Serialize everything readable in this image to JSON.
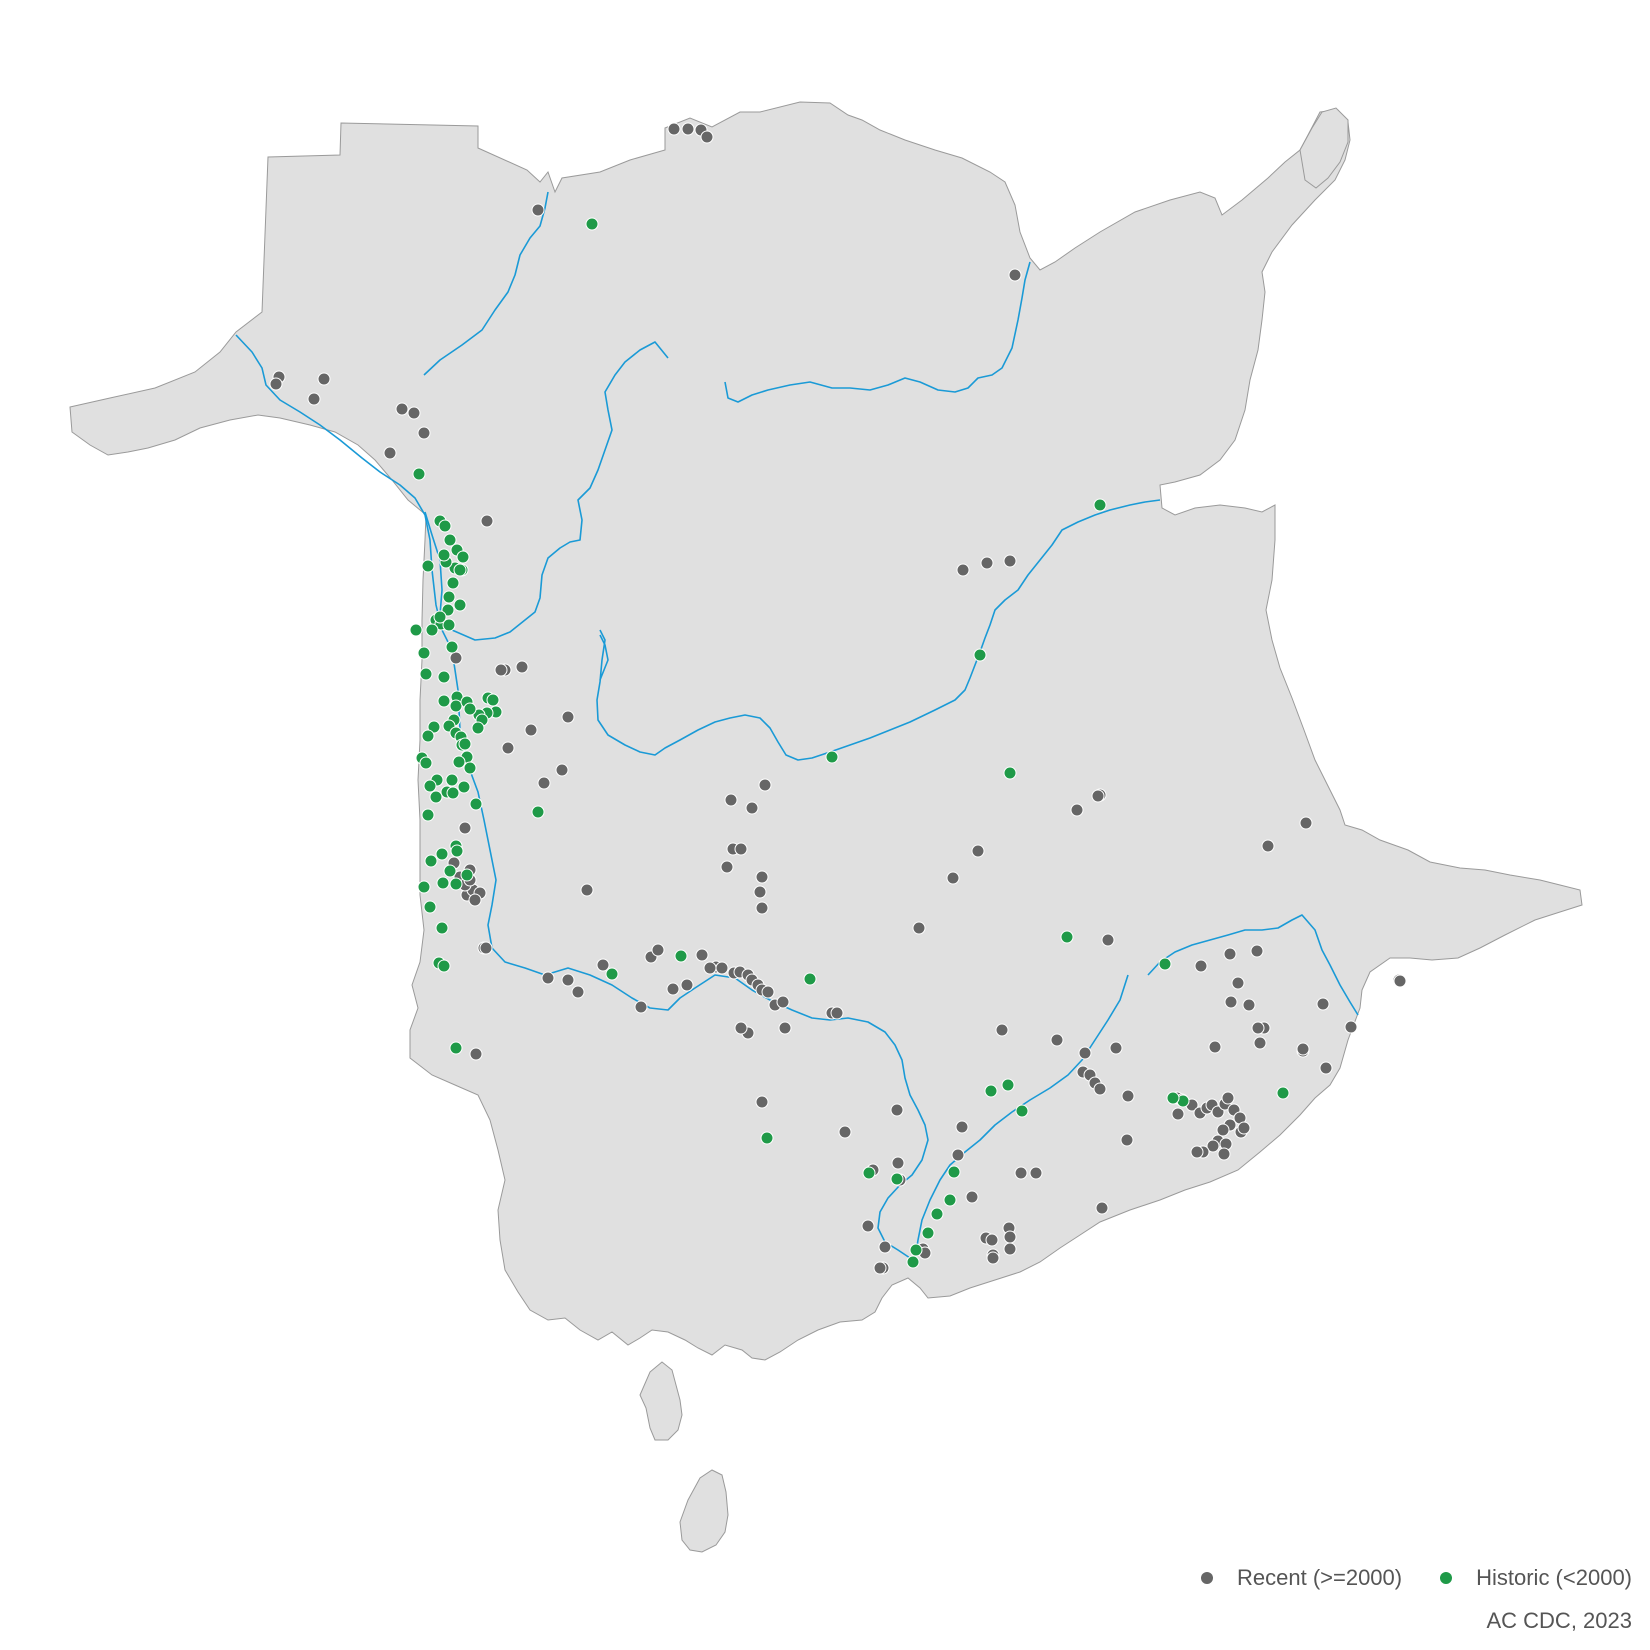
{
  "legend": {
    "recent": {
      "label": "Recent (>=2000)",
      "color": "#666666"
    },
    "historic": {
      "label": "Historic (<2000)",
      "color": "#1f9a48"
    }
  },
  "credit": "AC CDC, 2023",
  "colors": {
    "land": "#e0e0e0",
    "water": "#1a9ad6",
    "background": "#ffffff"
  },
  "observations": {
    "recent": [
      [
        674,
        129
      ],
      [
        688,
        129
      ],
      [
        701,
        130
      ],
      [
        707,
        137
      ],
      [
        538,
        210
      ],
      [
        1015,
        275
      ],
      [
        279,
        377
      ],
      [
        276,
        384
      ],
      [
        324,
        379
      ],
      [
        314,
        399
      ],
      [
        402,
        409
      ],
      [
        414,
        413
      ],
      [
        424,
        433
      ],
      [
        390,
        453
      ],
      [
        487,
        521
      ],
      [
        963,
        570
      ],
      [
        987,
        563
      ],
      [
        1010,
        561
      ],
      [
        505,
        670
      ],
      [
        501,
        670
      ],
      [
        522,
        667
      ],
      [
        456,
        658
      ],
      [
        568,
        717
      ],
      [
        531,
        730
      ],
      [
        508,
        748
      ],
      [
        544,
        783
      ],
      [
        562,
        770
      ],
      [
        731,
        800
      ],
      [
        765,
        785
      ],
      [
        752,
        808
      ],
      [
        1100,
        795
      ],
      [
        1098,
        796
      ],
      [
        1077,
        810
      ],
      [
        1306,
        823
      ],
      [
        1268,
        846
      ],
      [
        733,
        849
      ],
      [
        741,
        849
      ],
      [
        727,
        867
      ],
      [
        762,
        877
      ],
      [
        760,
        892
      ],
      [
        762,
        908
      ],
      [
        978,
        851
      ],
      [
        953,
        878
      ],
      [
        587,
        890
      ],
      [
        919,
        928
      ],
      [
        1108,
        940
      ],
      [
        484,
        948
      ],
      [
        548,
        978
      ],
      [
        568,
        980
      ],
      [
        578,
        992
      ],
      [
        603,
        965
      ],
      [
        651,
        957
      ],
      [
        658,
        950
      ],
      [
        687,
        985
      ],
      [
        673,
        989
      ],
      [
        702,
        955
      ],
      [
        716,
        967
      ],
      [
        710,
        968
      ],
      [
        722,
        968
      ],
      [
        734,
        973
      ],
      [
        740,
        972
      ],
      [
        748,
        975
      ],
      [
        752,
        980
      ],
      [
        758,
        985
      ],
      [
        762,
        990
      ],
      [
        768,
        992
      ],
      [
        775,
        1005
      ],
      [
        783,
        1002
      ],
      [
        641,
        1007
      ],
      [
        832,
        1013
      ],
      [
        837,
        1013
      ],
      [
        785,
        1028
      ],
      [
        748,
        1033
      ],
      [
        741,
        1028
      ],
      [
        1002,
        1030
      ],
      [
        1057,
        1040
      ],
      [
        1116,
        1048
      ],
      [
        1257,
        951
      ],
      [
        1230,
        954
      ],
      [
        1201,
        966
      ],
      [
        1238,
        983
      ],
      [
        1231,
        1002
      ],
      [
        1249,
        1005
      ],
      [
        1264,
        1028
      ],
      [
        1258,
        1028
      ],
      [
        1215,
        1047
      ],
      [
        1323,
        1004
      ],
      [
        1351,
        1027
      ],
      [
        1399,
        980
      ],
      [
        1303,
        1051
      ],
      [
        1260,
        1043
      ],
      [
        1085,
        1053
      ],
      [
        1303,
        1049
      ],
      [
        1083,
        1072
      ],
      [
        1090,
        1075
      ],
      [
        1095,
        1083
      ],
      [
        1100,
        1089
      ],
      [
        1128,
        1096
      ],
      [
        1177,
        1098
      ],
      [
        1182,
        1100
      ],
      [
        1192,
        1105
      ],
      [
        1200,
        1113
      ],
      [
        1207,
        1108
      ],
      [
        1212,
        1105
      ],
      [
        1218,
        1112
      ],
      [
        1225,
        1104
      ],
      [
        1228,
        1098
      ],
      [
        1234,
        1110
      ],
      [
        1240,
        1118
      ],
      [
        1230,
        1125
      ],
      [
        1223,
        1130
      ],
      [
        1218,
        1141
      ],
      [
        1213,
        1146
      ],
      [
        1203,
        1152
      ],
      [
        1226,
        1144
      ],
      [
        1241,
        1132
      ],
      [
        1244,
        1128
      ],
      [
        1178,
        1114
      ],
      [
        1127,
        1140
      ],
      [
        1224,
        1154
      ],
      [
        1197,
        1152
      ],
      [
        1326,
        1068
      ],
      [
        762,
        1102
      ],
      [
        897,
        1110
      ],
      [
        845,
        1132
      ],
      [
        962,
        1127
      ],
      [
        898,
        1163
      ],
      [
        873,
        1170
      ],
      [
        958,
        1155
      ],
      [
        900,
        1180
      ],
      [
        1021,
        1173
      ],
      [
        1036,
        1173
      ],
      [
        972,
        1197
      ],
      [
        1102,
        1208
      ],
      [
        868,
        1226
      ],
      [
        885,
        1247
      ],
      [
        923,
        1249
      ],
      [
        925,
        1253
      ],
      [
        883,
        1268
      ],
      [
        986,
        1238
      ],
      [
        992,
        1240
      ],
      [
        1009,
        1228
      ],
      [
        1010,
        1237
      ],
      [
        1010,
        1249
      ],
      [
        993,
        1255
      ],
      [
        993,
        1258
      ],
      [
        880,
        1268
      ],
      [
        465,
        828
      ],
      [
        470,
        870
      ],
      [
        454,
        863
      ],
      [
        467,
        895
      ],
      [
        473,
        890
      ],
      [
        480,
        893
      ],
      [
        460,
        877
      ],
      [
        465,
        885
      ],
      [
        470,
        880
      ],
      [
        475,
        900
      ],
      [
        476,
        1054
      ],
      [
        486,
        948
      ],
      [
        1400,
        981
      ]
    ],
    "historic": [
      [
        592,
        224
      ],
      [
        419,
        474
      ],
      [
        1100,
        505
      ],
      [
        440,
        521
      ],
      [
        445,
        526
      ],
      [
        450,
        540
      ],
      [
        457,
        550
      ],
      [
        463,
        557
      ],
      [
        455,
        568
      ],
      [
        462,
        570
      ],
      [
        428,
        566
      ],
      [
        446,
        562
      ],
      [
        449,
        597
      ],
      [
        448,
        610
      ],
      [
        436,
        620
      ],
      [
        441,
        624
      ],
      [
        449,
        625
      ],
      [
        452,
        647
      ],
      [
        426,
        674
      ],
      [
        444,
        677
      ],
      [
        457,
        697
      ],
      [
        456,
        706
      ],
      [
        467,
        702
      ],
      [
        488,
        698
      ],
      [
        493,
        700
      ],
      [
        496,
        712
      ],
      [
        487,
        713
      ],
      [
        479,
        715
      ],
      [
        454,
        720
      ],
      [
        449,
        726
      ],
      [
        456,
        733
      ],
      [
        461,
        737
      ],
      [
        462,
        745
      ],
      [
        467,
        757
      ],
      [
        459,
        762
      ],
      [
        434,
        727
      ],
      [
        428,
        736
      ],
      [
        422,
        758
      ],
      [
        426,
        763
      ],
      [
        437,
        780
      ],
      [
        430,
        786
      ],
      [
        447,
        792
      ],
      [
        453,
        793
      ],
      [
        464,
        787
      ],
      [
        476,
        804
      ],
      [
        436,
        797
      ],
      [
        428,
        815
      ],
      [
        538,
        812
      ],
      [
        456,
        846
      ],
      [
        431,
        861
      ],
      [
        442,
        854
      ],
      [
        457,
        851
      ],
      [
        450,
        871
      ],
      [
        443,
        883
      ],
      [
        456,
        884
      ],
      [
        467,
        875
      ],
      [
        424,
        887
      ],
      [
        430,
        907
      ],
      [
        442,
        928
      ],
      [
        439,
        963
      ],
      [
        444,
        966
      ],
      [
        456,
        1048
      ],
      [
        1067,
        937
      ],
      [
        1165,
        964
      ],
      [
        1010,
        773
      ],
      [
        810,
        979
      ],
      [
        681,
        956
      ],
      [
        612,
        974
      ],
      [
        991,
        1091
      ],
      [
        1008,
        1085
      ],
      [
        1022,
        1111
      ],
      [
        767,
        1138
      ],
      [
        869,
        1173
      ],
      [
        897,
        1179
      ],
      [
        954,
        1172
      ],
      [
        950,
        1200
      ],
      [
        937,
        1214
      ],
      [
        928,
        1233
      ],
      [
        913,
        1262
      ],
      [
        1283,
        1093
      ],
      [
        1183,
        1101
      ],
      [
        1173,
        1098
      ],
      [
        424,
        653
      ],
      [
        432,
        630
      ],
      [
        416,
        630
      ],
      [
        440,
        617
      ],
      [
        460,
        570
      ],
      [
        444,
        555
      ],
      [
        453,
        583
      ],
      [
        460,
        605
      ],
      [
        444,
        701
      ],
      [
        470,
        709
      ],
      [
        482,
        720
      ],
      [
        478,
        728
      ],
      [
        465,
        744
      ],
      [
        470,
        768
      ],
      [
        452,
        780
      ],
      [
        916,
        1250
      ],
      [
        980,
        655
      ],
      [
        832,
        757
      ]
    ]
  }
}
